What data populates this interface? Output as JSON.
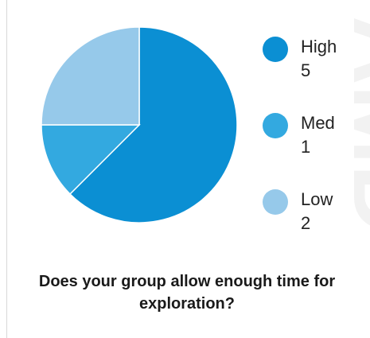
{
  "chart_data": {
    "type": "pie",
    "title": "Does your group allow enough time for exploration?",
    "slices": [
      {
        "label": "High",
        "value": 5,
        "color": "#0b8fd3"
      },
      {
        "label": "Med",
        "value": 1,
        "color": "#33a9e0"
      },
      {
        "label": "Low",
        "value": 2,
        "color": "#96c9ea"
      }
    ],
    "legend_position": "right"
  },
  "legend": {
    "items": [
      {
        "label": "High",
        "value": "5",
        "color": "#0b8fd3"
      },
      {
        "label": "Med",
        "value": "1",
        "color": "#33a9e0"
      },
      {
        "label": "Low",
        "value": "2",
        "color": "#96c9ea"
      }
    ]
  },
  "watermark": {
    "text": "AMD"
  }
}
